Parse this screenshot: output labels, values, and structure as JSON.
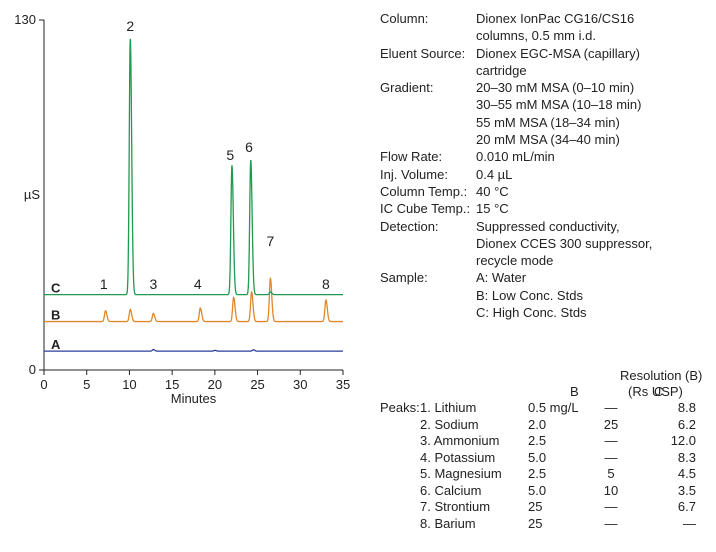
{
  "chart_data": {
    "type": "line",
    "xlabel": "Minutes",
    "ylabel": "µS",
    "xlim": [
      0,
      35
    ],
    "ylim": [
      0,
      130
    ],
    "x_ticks": [
      "0",
      "5",
      "10",
      "15",
      "20",
      "25",
      "30",
      "35"
    ],
    "y_ticks": [
      "0",
      "130"
    ],
    "grid": false,
    "series": [
      {
        "name": "A",
        "color": "#2a3f9c",
        "baseline": 7,
        "peaks": [
          [
            12.8,
            0.6
          ],
          [
            20.0,
            0.3
          ],
          [
            24.5,
            0.5
          ]
        ]
      },
      {
        "name": "B",
        "color": "#e0872a",
        "baseline": 18,
        "peaks": [
          [
            7.2,
            4
          ],
          [
            10.1,
            4.5
          ],
          [
            12.8,
            3
          ],
          [
            18.3,
            5
          ],
          [
            22.2,
            9
          ],
          [
            24.3,
            11
          ],
          [
            26.5,
            16
          ],
          [
            33.0,
            8
          ]
        ]
      },
      {
        "name": "C",
        "color": "#1f9a4e",
        "baseline": 28,
        "peaks": [
          [
            10.1,
            95
          ],
          [
            22.0,
            48
          ],
          [
            24.2,
            50
          ],
          [
            26.5,
            1
          ]
        ]
      }
    ],
    "peak_labels": [
      {
        "label": "1",
        "x": 7.0,
        "y": 30
      },
      {
        "label": "2",
        "x": 10.1,
        "y": 126
      },
      {
        "label": "3",
        "x": 12.8,
        "y": 30
      },
      {
        "label": "4",
        "x": 18.0,
        "y": 30
      },
      {
        "label": "5",
        "x": 21.8,
        "y": 78
      },
      {
        "label": "6",
        "x": 24.0,
        "y": 81
      },
      {
        "label": "7",
        "x": 26.5,
        "y": 46
      },
      {
        "label": "8",
        "x": 33.0,
        "y": 30
      }
    ]
  },
  "conditions": [
    {
      "label": "Column:",
      "values": [
        "Dionex IonPac CG16/CS16",
        "columns, 0.5 mm i.d."
      ]
    },
    {
      "label": "Eluent Source:",
      "values": [
        "Dionex EGC-MSA (capillary)",
        "cartridge"
      ]
    },
    {
      "label": "Gradient:",
      "values": [
        "20–30 mM MSA (0–10 min)",
        "30–55 mM MSA (10–18 min)",
        "55 mM MSA (18–34 min)",
        "20 mM MSA (34–40 min)"
      ]
    },
    {
      "label": "Flow Rate:",
      "values": [
        "0.010 mL/min"
      ]
    },
    {
      "label": "Inj. Volume:",
      "values": [
        "0.4 µL"
      ]
    },
    {
      "label": "Column Temp.:",
      "values": [
        "40 °C"
      ]
    },
    {
      "label": "IC Cube Temp.:",
      "values": [
        "15 °C"
      ]
    },
    {
      "label": "Detection:",
      "values": [
        "Suppressed conductivity,",
        "Dionex CCES 300 suppressor,",
        "recycle mode"
      ]
    },
    {
      "label": "Sample:",
      "values": [
        "A: Water",
        "B: Low Conc. Stds",
        "C: High Conc. Stds"
      ]
    }
  ],
  "peaks_table": {
    "label": "Peaks:",
    "col_b": "B",
    "col_c": "C",
    "col_res_1": "Resolution (B)",
    "col_res_2": "(Rs USP)",
    "rows": [
      {
        "name": "1. Lithium",
        "b": "0.5 mg/L",
        "c": "—",
        "res": "8.8"
      },
      {
        "name": "2. Sodium",
        "b": "2.0",
        "c": "25",
        "res": "6.2"
      },
      {
        "name": "3. Ammonium",
        "b": "2.5",
        "c": "—",
        "res": "12.0"
      },
      {
        "name": "4. Potassium",
        "b": "5.0",
        "c": "—",
        "res": "8.3"
      },
      {
        "name": "5. Magnesium",
        "b": "2.5",
        "c": "5",
        "res": "4.5"
      },
      {
        "name": "6. Calcium",
        "b": "5.0",
        "c": "10",
        "res": "3.5"
      },
      {
        "name": "7. Strontium",
        "b": "25",
        "c": "—",
        "res": "6.7"
      },
      {
        "name": "8. Barium",
        "b": "25",
        "c": "—",
        "res": "—"
      }
    ]
  }
}
